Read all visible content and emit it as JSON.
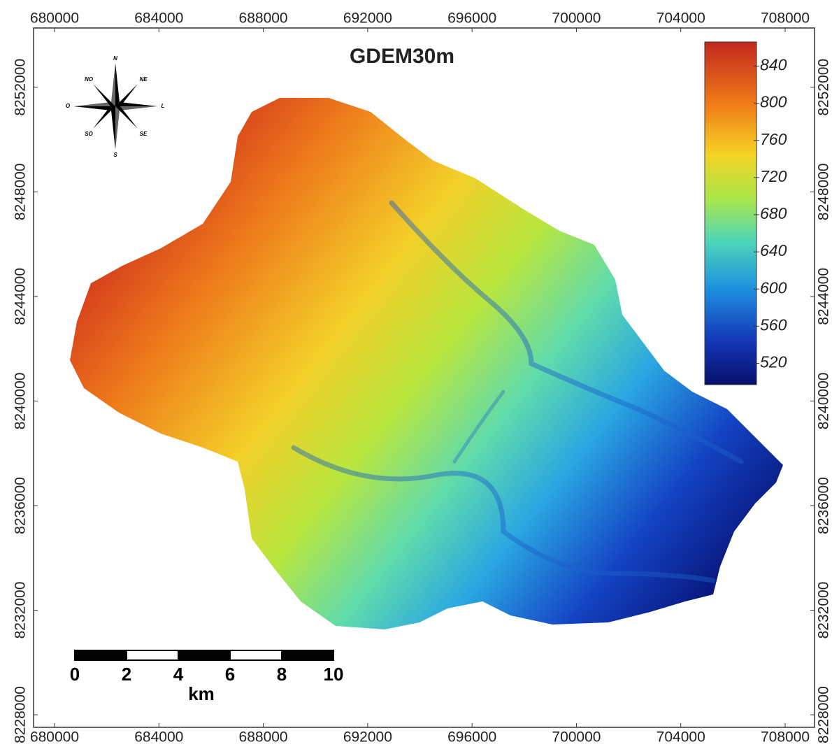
{
  "map": {
    "title": "GDEM30m",
    "xlim": [
      679196,
      709125
    ],
    "ylim": [
      8227520,
      8254267
    ],
    "xticks": [
      680000,
      684000,
      688000,
      692000,
      696000,
      700000,
      704000,
      708000
    ],
    "yticks": [
      8228000,
      8232000,
      8236000,
      8240000,
      8244000,
      8248000,
      8252000
    ],
    "colorbar": {
      "range": [
        497,
        866
      ],
      "ticks": [
        520,
        560,
        600,
        640,
        680,
        720,
        760,
        800,
        840
      ]
    },
    "scale_bar": {
      "labels": [
        0,
        2,
        4,
        6,
        8,
        10
      ],
      "unit": "km"
    },
    "compass": {
      "n": "N",
      "ne": "NE",
      "e": "L",
      "se": "SE",
      "s": "S",
      "sw": "SO",
      "w": "O",
      "nw": "NO"
    }
  }
}
